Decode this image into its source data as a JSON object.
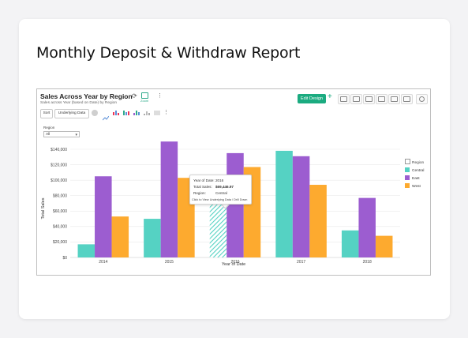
{
  "page": {
    "title": "Monthly Deposit & Withdraw Report"
  },
  "report": {
    "title": "Sales Across Year by Region",
    "subtitle": "Sales across Year (based on Date) by Region",
    "zoom_label": "Zoom",
    "edit_design_label": "Edit Design",
    "sort_label": "Sort",
    "underlying_label": "Underlying Data",
    "filter_label": "Region",
    "filter_value": "All"
  },
  "legend": {
    "title": "Region",
    "items": [
      "Central",
      "East",
      "West"
    ]
  },
  "tooltip": {
    "year_label": "Year of Date:",
    "year_value": "2016",
    "sales_label": "Total Sales:",
    "sales_value": "$69,446.97",
    "region_label": "Region:",
    "region_value": "Central",
    "footer": "Click to View Underlying Data / Drill Down"
  },
  "colors": {
    "central": "#55d2c3",
    "east": "#9c5dd0",
    "west": "#fdaa2f",
    "accent": "#1bab80"
  },
  "chart_data": {
    "type": "bar",
    "categories": [
      "2014",
      "2015",
      "2016",
      "2017",
      "2018"
    ],
    "series": [
      {
        "name": "Central",
        "values": [
          17000,
          50000,
          69447,
          138000,
          35000
        ]
      },
      {
        "name": "East",
        "values": [
          105000,
          150000,
          135000,
          131000,
          77000
        ]
      },
      {
        "name": "West",
        "values": [
          53000,
          103000,
          117000,
          94000,
          28000
        ]
      }
    ],
    "xlabel": "Year of Date",
    "ylabel": "Total Sales",
    "ylim": [
      0,
      140000
    ],
    "yticks": [
      "$0",
      "$20,000",
      "$40,000",
      "$60,000",
      "$80,000",
      "$100,000",
      "$120,000",
      "$140,000"
    ],
    "grid": true,
    "legend": "right"
  }
}
